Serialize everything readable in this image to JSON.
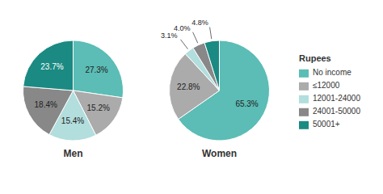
{
  "chart_data": {
    "type": "pie",
    "categories": [
      "No income",
      "≤12000",
      "12001-24000",
      "24001-50000",
      "50001+"
    ],
    "colors": [
      "#5bbdb5",
      "#ababab",
      "#b2dedd",
      "#888888",
      "#1a8a82"
    ],
    "legend_title": "Rupees",
    "legend": "right",
    "data_labels": true,
    "series": [
      {
        "name": "Men",
        "values": [
          27.3,
          15.2,
          15.4,
          18.4,
          23.7
        ],
        "value_labels": [
          "27.3%",
          "15.2%",
          "15.4%",
          "18.4%",
          "23.7%"
        ]
      },
      {
        "name": "Women",
        "values": [
          65.3,
          22.8,
          3.1,
          4.0,
          4.8
        ],
        "value_labels": [
          "65.3%",
          "22.8%",
          "3.1%",
          "4.0%",
          "4.8%"
        ]
      }
    ]
  }
}
